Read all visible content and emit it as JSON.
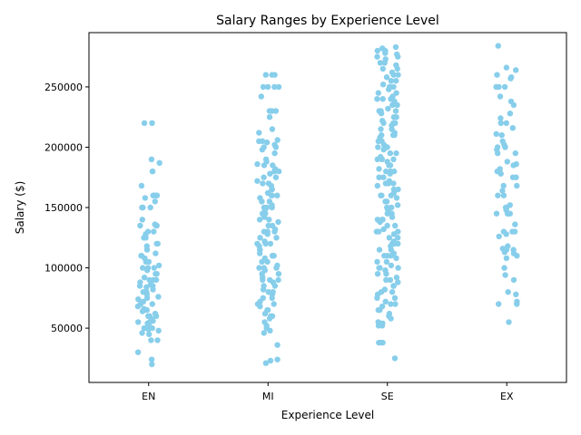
{
  "chart_data": {
    "type": "scatter",
    "title": "Salary Ranges by Experience Level",
    "xlabel": "Experience Level",
    "ylabel": "Salary ($)",
    "categories": [
      "EN",
      "MI",
      "SE",
      "EX"
    ],
    "ylim": [
      5000,
      295000
    ],
    "yticks": [
      50000,
      100000,
      150000,
      200000,
      250000
    ],
    "grid": false,
    "marker_color": "#87CEEB",
    "series": [
      {
        "category": "EN",
        "values": [
          220000,
          220000,
          190000,
          187000,
          180000,
          180000,
          168000,
          160000,
          160000,
          160000,
          160000,
          158000,
          155000,
          150000,
          150000,
          150000,
          140000,
          136000,
          135000,
          135000,
          135000,
          130000,
          130000,
          128000,
          125000,
          125000,
          120000,
          120000,
          118000,
          115000,
          112000,
          110000,
          110000,
          108000,
          105000,
          105000,
          102000,
          100000,
          100000,
          100000,
          98000,
          95000,
          95000,
          92000,
          90000,
          90000,
          90000,
          88000,
          86000,
          85000,
          85000,
          84000,
          82000,
          80000,
          80000,
          80000,
          78000,
          76000,
          75000,
          74000,
          72000,
          70000,
          70000,
          68000,
          66000,
          65000,
          65000,
          64000,
          62000,
          60000,
          60000,
          60000,
          58000,
          56000,
          55000,
          55000,
          54000,
          52000,
          50000,
          50000,
          49000,
          48000,
          46000,
          45000,
          40000,
          40000,
          30000,
          24000,
          20000
        ]
      },
      {
        "category": "MI",
        "values": [
          260000,
          260000,
          260000,
          250000,
          250000,
          250000,
          250000,
          242000,
          230000,
          230000,
          230000,
          225000,
          215000,
          212000,
          206000,
          205000,
          205000,
          204000,
          202000,
          200000,
          200000,
          198000,
          195000,
          190000,
          188000,
          186000,
          185000,
          185000,
          182000,
          180000,
          180000,
          178000,
          175000,
          175000,
          172000,
          170000,
          170000,
          168000,
          165000,
          165000,
          162000,
          160000,
          160000,
          160000,
          158000,
          155000,
          155000,
          152000,
          150000,
          150000,
          150000,
          148000,
          145000,
          145000,
          142000,
          140000,
          140000,
          138000,
          135000,
          135000,
          132000,
          130000,
          130000,
          130000,
          128000,
          125000,
          125000,
          122000,
          120000,
          120000,
          120000,
          118000,
          115000,
          115000,
          112000,
          110000,
          110000,
          110000,
          108000,
          105000,
          105000,
          102000,
          100000,
          100000,
          100000,
          98000,
          95000,
          95000,
          92000,
          90000,
          90000,
          90000,
          88000,
          85000,
          85000,
          82000,
          80000,
          80000,
          80000,
          78000,
          75000,
          75000,
          72000,
          70000,
          70000,
          68000,
          65000,
          65000,
          62000,
          60000,
          60000,
          58000,
          55000,
          52000,
          50000,
          48000,
          46000,
          36000,
          24000,
          23000,
          21000
        ]
      },
      {
        "category": "SE",
        "values": [
          283000,
          282000,
          280000,
          280000,
          278000,
          277000,
          275000,
          275000,
          273000,
          270000,
          270000,
          268000,
          265000,
          265000,
          262000,
          260000,
          260000,
          258000,
          255000,
          255000,
          252000,
          250000,
          250000,
          250000,
          248000,
          245000,
          245000,
          242000,
          240000,
          240000,
          240000,
          238000,
          235000,
          235000,
          232000,
          230000,
          230000,
          230000,
          228000,
          225000,
          225000,
          222000,
          220000,
          220000,
          220000,
          218000,
          215000,
          215000,
          212000,
          210000,
          210000,
          210000,
          208000,
          205000,
          205000,
          202000,
          200000,
          200000,
          200000,
          198000,
          195000,
          195000,
          192000,
          190000,
          190000,
          190000,
          188000,
          185000,
          185000,
          182000,
          180000,
          180000,
          180000,
          178000,
          175000,
          175000,
          172000,
          170000,
          170000,
          170000,
          168000,
          165000,
          165000,
          162000,
          160000,
          160000,
          160000,
          158000,
          155000,
          155000,
          152000,
          150000,
          150000,
          150000,
          148000,
          145000,
          145000,
          142000,
          140000,
          140000,
          140000,
          138000,
          135000,
          135000,
          132000,
          130000,
          130000,
          130000,
          128000,
          125000,
          125000,
          122000,
          120000,
          120000,
          120000,
          118000,
          115000,
          115000,
          112000,
          110000,
          110000,
          110000,
          108000,
          105000,
          105000,
          102000,
          100000,
          100000,
          100000,
          98000,
          95000,
          95000,
          92000,
          90000,
          90000,
          88000,
          85000,
          85000,
          82000,
          80000,
          80000,
          78000,
          75000,
          75000,
          72000,
          70000,
          70000,
          68000,
          65000,
          65000,
          62000,
          60000,
          58000,
          55000,
          54000,
          52000,
          52000,
          38000,
          38000,
          38000,
          25000
        ]
      },
      {
        "category": "EX",
        "values": [
          284000,
          266000,
          264000,
          260000,
          258000,
          257000,
          250000,
          250000,
          250000,
          242000,
          238000,
          235000,
          228000,
          224000,
          220000,
          220000,
          216000,
          211000,
          210000,
          205000,
          202000,
          200000,
          200000,
          200000,
          198000,
          195000,
          195000,
          188000,
          186000,
          185000,
          182000,
          180000,
          178000,
          175000,
          175000,
          168000,
          168000,
          164000,
          160000,
          160000,
          152000,
          150000,
          150000,
          148000,
          145000,
          145000,
          145000,
          145000,
          136000,
          130000,
          130000,
          130000,
          128000,
          126000,
          118000,
          116000,
          116000,
          115000,
          115000,
          113000,
          112000,
          110000,
          108000,
          100000,
          94000,
          90000,
          80000,
          78000,
          72000,
          70000,
          70000,
          55000
        ]
      }
    ]
  }
}
